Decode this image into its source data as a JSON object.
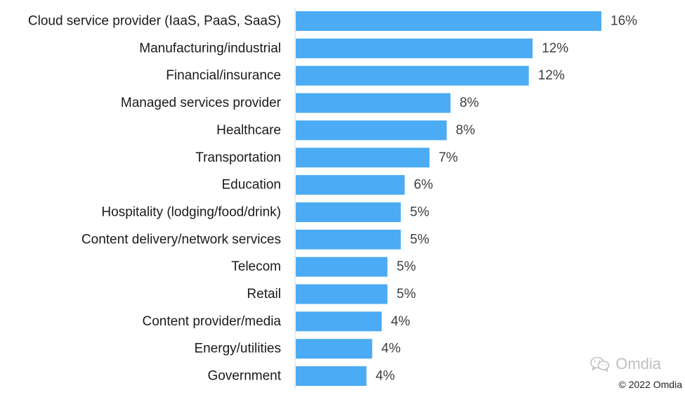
{
  "chart_data": {
    "type": "bar",
    "orientation": "horizontal",
    "categories": [
      "Cloud service provider (IaaS, PaaS, SaaS)",
      "Manufacturing/industrial",
      "Financial/insurance",
      "Managed services provider",
      "Healthcare",
      "Transportation",
      "Education",
      "Hospitality (lodging/food/drink)",
      "Content delivery/network services",
      "Telecom",
      "Retail",
      "Content provider/media",
      "Energy/utilities",
      "Government"
    ],
    "values": [
      16,
      12,
      12,
      8,
      8,
      7,
      6,
      5,
      5,
      5,
      5,
      4,
      4,
      4
    ],
    "bar_lengths": [
      16.0,
      12.4,
      12.2,
      8.1,
      7.9,
      7.0,
      5.7,
      5.5,
      5.5,
      4.8,
      4.8,
      4.5,
      4.0,
      3.7
    ],
    "value_labels": [
      "16%",
      "12%",
      "12%",
      "8%",
      "8%",
      "7%",
      "6%",
      "5%",
      "5%",
      "5%",
      "5%",
      "4%",
      "4%",
      "4%"
    ],
    "xlim": [
      0,
      16
    ],
    "grid": false,
    "legend": "none",
    "bar_color": "#4BABF4"
  },
  "watermark": {
    "text": "Omdia",
    "icon": "wechat-icon"
  },
  "copyright": "© 2022 Omdia"
}
